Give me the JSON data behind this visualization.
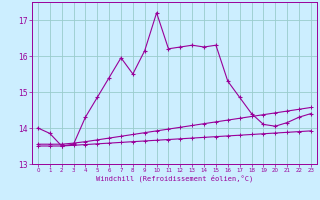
{
  "xlabel": "Windchill (Refroidissement éolien,°C)",
  "x": [
    0,
    1,
    2,
    3,
    4,
    5,
    6,
    7,
    8,
    9,
    10,
    11,
    12,
    13,
    14,
    15,
    16,
    17,
    18,
    19,
    20,
    21,
    22,
    23
  ],
  "y_main": [
    14.0,
    13.85,
    13.5,
    13.55,
    14.3,
    14.85,
    15.4,
    15.95,
    15.5,
    16.15,
    17.2,
    16.2,
    16.25,
    16.3,
    16.25,
    16.3,
    15.3,
    14.85,
    14.4,
    14.1,
    14.05,
    14.15,
    14.3,
    14.4
  ],
  "y_low": [
    13.5,
    13.5,
    13.5,
    13.52,
    13.54,
    13.56,
    13.58,
    13.6,
    13.62,
    13.64,
    13.66,
    13.68,
    13.7,
    13.72,
    13.74,
    13.76,
    13.78,
    13.8,
    13.82,
    13.84,
    13.86,
    13.88,
    13.9,
    13.92
  ],
  "y_high": [
    13.55,
    13.55,
    13.55,
    13.58,
    13.62,
    13.67,
    13.72,
    13.77,
    13.82,
    13.87,
    13.92,
    13.97,
    14.02,
    14.07,
    14.12,
    14.17,
    14.22,
    14.27,
    14.32,
    14.37,
    14.42,
    14.47,
    14.52,
    14.57
  ],
  "line_color": "#990099",
  "bg_color": "#cceeff",
  "grid_color": "#99cccc",
  "ylim": [
    13.0,
    17.5
  ],
  "yticks": [
    13,
    14,
    15,
    16,
    17
  ],
  "xticks": [
    0,
    1,
    2,
    3,
    4,
    5,
    6,
    7,
    8,
    9,
    10,
    11,
    12,
    13,
    14,
    15,
    16,
    17,
    18,
    19,
    20,
    21,
    22,
    23
  ]
}
